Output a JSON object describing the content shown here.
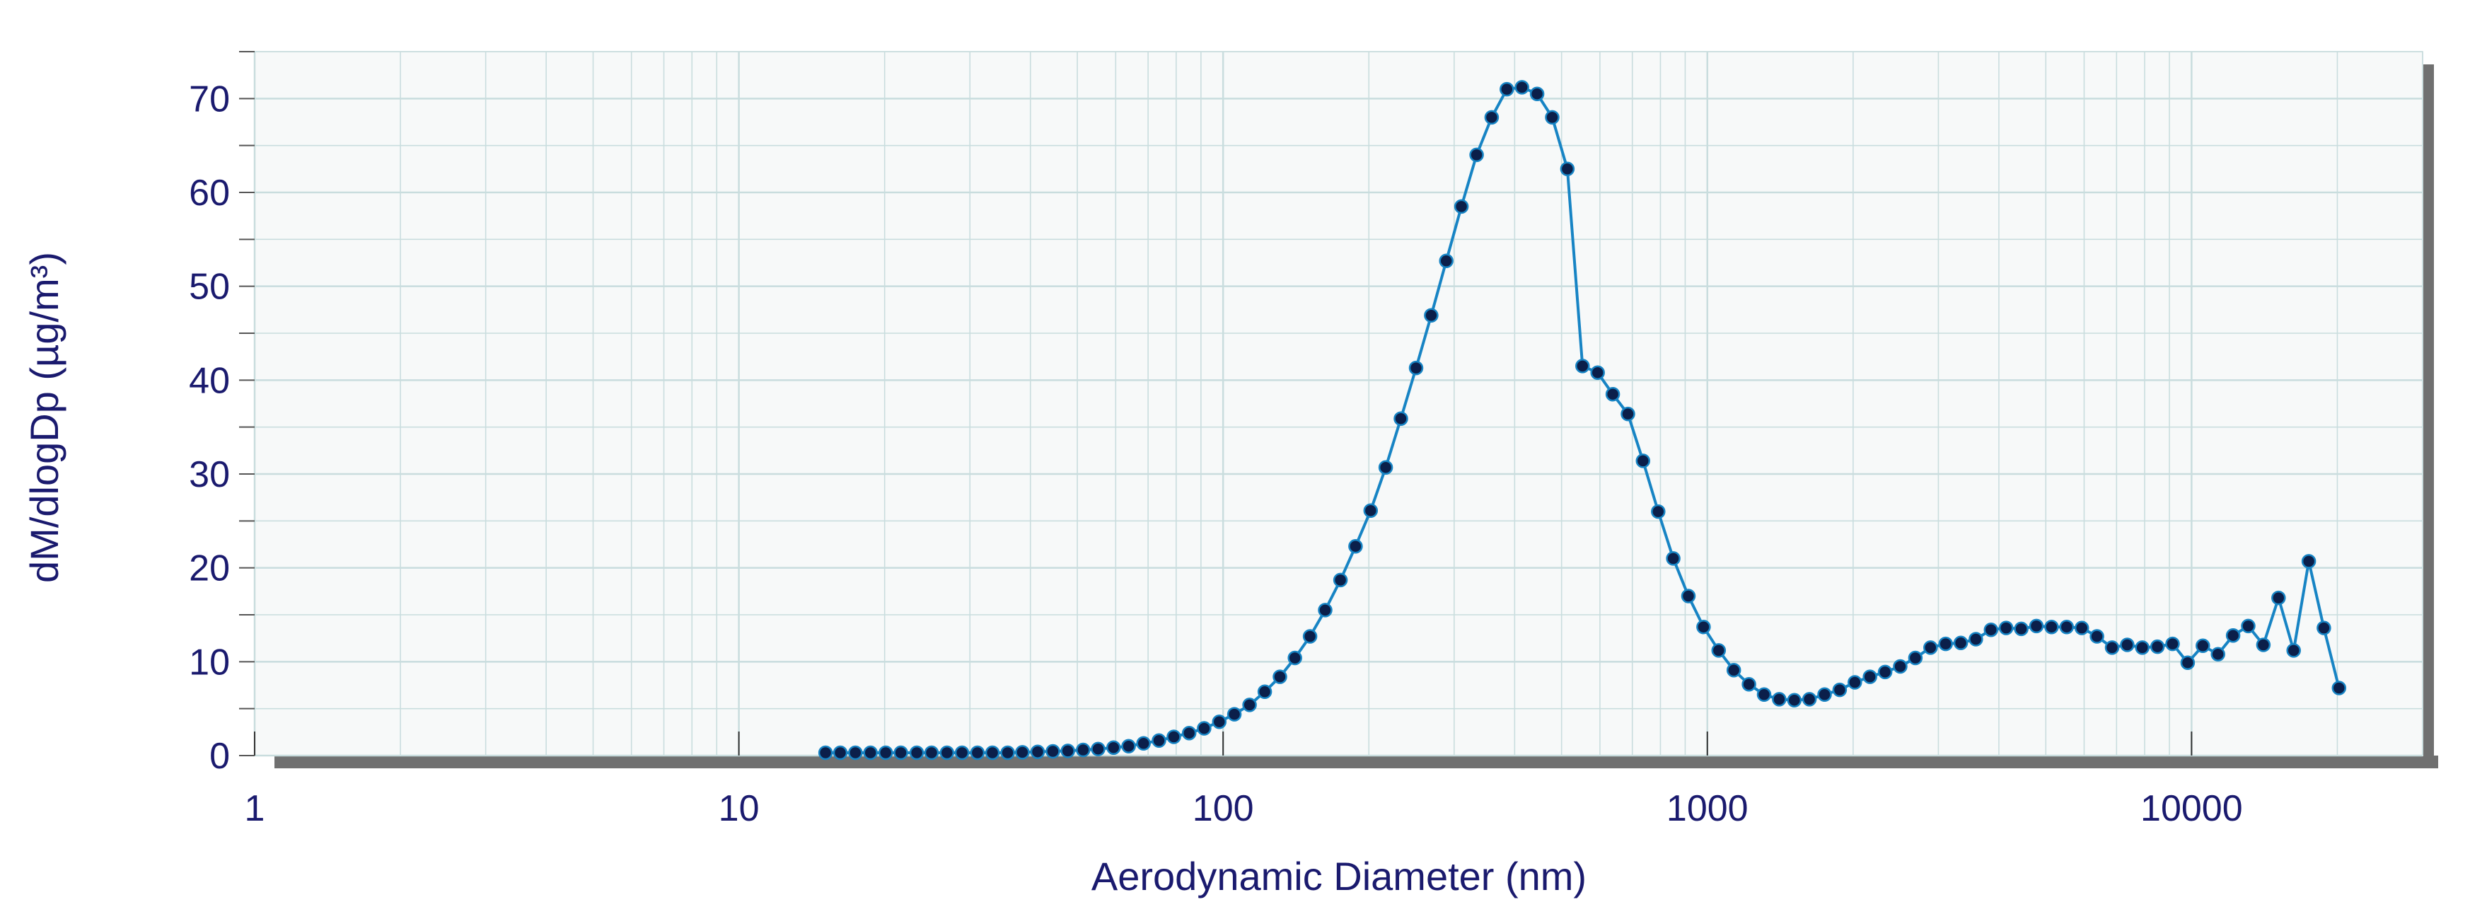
{
  "colors": {
    "plot_background": "#f7f9f9",
    "grid": "#c9ddde",
    "line": "#1784c4",
    "marker": "#0b1f4a",
    "text": "#1a1a6e",
    "axis_shadow": "#707070"
  },
  "chart_data": {
    "type": "line",
    "title": "",
    "xlabel": "Aerodynamic Diameter (nm)",
    "ylabel": "dM/dlogDp (µg/m³)",
    "x_scale": "log",
    "xlim": [
      1,
      30000
    ],
    "ylim": [
      0,
      75
    ],
    "x_ticks": [
      "1",
      "10",
      "100",
      "1000",
      "10000"
    ],
    "y_ticks": [
      "0",
      "10",
      "20",
      "30",
      "40",
      "50",
      "60",
      "70"
    ],
    "grid": true,
    "legend": "none",
    "markers": true,
    "series": [
      {
        "x": [
          15.1,
          16.2,
          17.4,
          18.7,
          20.1,
          21.6,
          23.3,
          25.0,
          26.9,
          28.9,
          31.1,
          33.4,
          35.9,
          38.5,
          41.4,
          44.5,
          47.8,
          51.4,
          55.2,
          59.4,
          63.8,
          68.5,
          73.7,
          79.1,
          85.1,
          91.4,
          98.2,
          105.5,
          113.4,
          121.9,
          131.0,
          140.7,
          151.2,
          162.5,
          174.7,
          187.7,
          201.7,
          216.7,
          232.9,
          250.3,
          269.0,
          289.0,
          310.6,
          333.8,
          358.7,
          385.4,
          414.2,
          445.1,
          478.3,
          514.0,
          552.3,
          593.5,
          637.8,
          685.4,
          736.5,
          791.5,
          850.5,
          914.0,
          982.2,
          1055.4,
          1134.1,
          1218.7,
          1309.6,
          1407.3,
          1512.3,
          1625.1,
          1746.4,
          1876.6,
          2016.6,
          2167.1,
          2328.7,
          2502.5,
          2689.2,
          2889.8,
          3105.3,
          3337.0,
          3585.9,
          3853.4,
          4140.9,
          4449.8,
          4781.7,
          5138.4,
          5521.7,
          5933.6,
          6376.3,
          6851.9,
          7363.1,
          7912.3,
          8502.6,
          9136.9,
          9818.5,
          10551.0,
          11338.1,
          12183.9,
          13092.8,
          14069.5,
          15119.1,
          16247.0,
          17459.1,
          18761.4,
          20161.1
        ],
        "y": [
          0.3,
          0.3,
          0.3,
          0.3,
          0.3,
          0.3,
          0.3,
          0.3,
          0.3,
          0.3,
          0.3,
          0.3,
          0.3,
          0.35,
          0.4,
          0.45,
          0.5,
          0.6,
          0.7,
          0.85,
          1.0,
          1.3,
          1.6,
          2.0,
          2.4,
          2.9,
          3.6,
          4.4,
          5.4,
          6.8,
          8.4,
          10.4,
          12.7,
          15.5,
          18.7,
          22.3,
          26.1,
          30.7,
          35.9,
          41.3,
          46.9,
          52.7,
          58.5,
          64.0,
          68.0,
          71.0,
          71.2,
          70.5,
          68.0,
          62.5,
          41.5,
          40.8,
          38.5,
          36.4,
          31.4,
          26.0,
          21.0,
          17.0,
          13.7,
          11.2,
          9.1,
          7.6,
          6.5,
          6.0,
          5.9,
          6.0,
          6.5,
          7.0,
          7.8,
          8.4,
          8.9,
          9.5,
          10.4,
          11.5,
          11.9,
          12.0,
          12.4,
          13.4,
          13.6,
          13.5,
          13.8,
          13.7,
          13.7,
          13.6,
          12.7,
          11.5,
          11.8,
          11.5,
          11.6,
          11.9,
          9.9,
          11.7,
          10.8,
          12.8,
          13.8,
          11.8,
          16.8,
          11.2,
          20.7,
          13.6,
          7.2
        ]
      }
    ]
  }
}
